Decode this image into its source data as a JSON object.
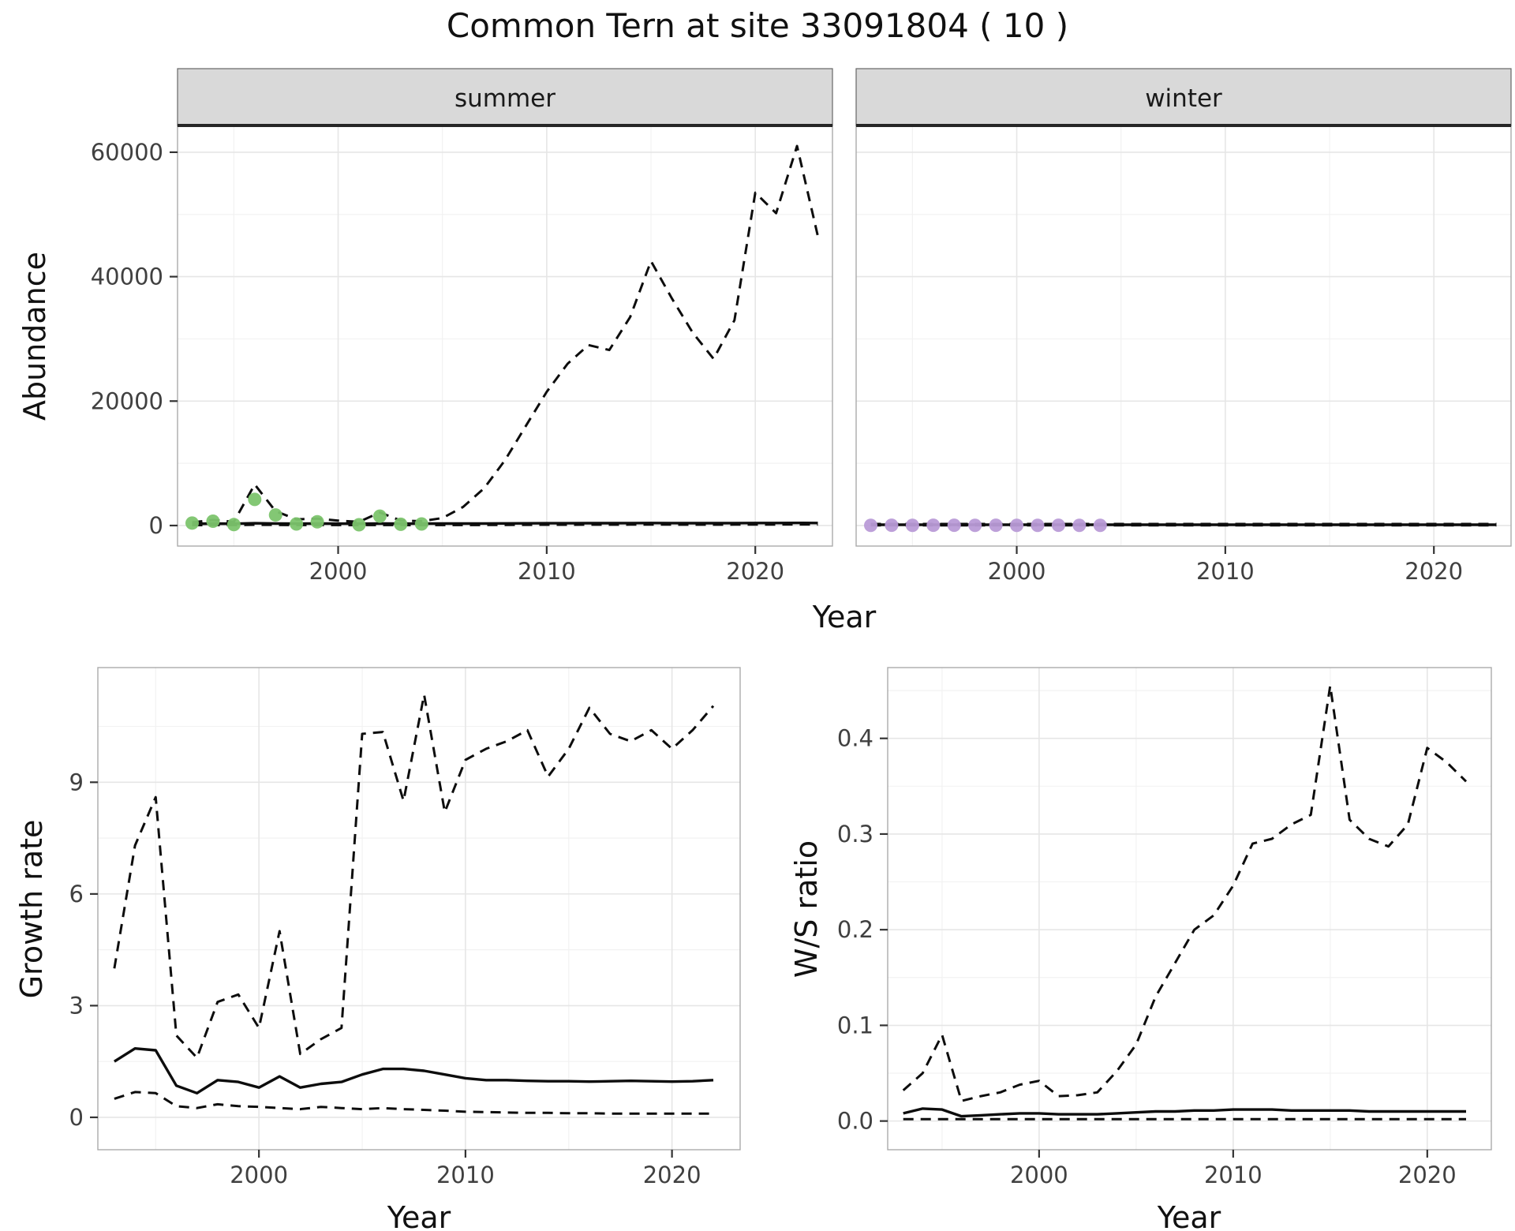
{
  "title": "Common Tern at site 33091804 ( 10 )",
  "axis_labels": {
    "abundance": "Abundance",
    "year": "Year",
    "growth_rate": "Growth rate",
    "ws_ratio": "W/S ratio"
  },
  "colors": {
    "summer_points": "#7cc46d",
    "winter_points": "#b99bd7",
    "line": "#0d0d0d",
    "strip_bg": "#d9d9d9",
    "strip_border": "#666666",
    "strip_underline": "#262626",
    "panel_border": "#ababab",
    "grid_major": "#e6e6e6",
    "grid_minor": "#f2f2f2",
    "tick": "#333333",
    "tick_label": "#404040",
    "text": "#1a1a1a"
  },
  "chart_data": [
    {
      "id": "abundance_summer",
      "type": "line",
      "facet_label": "summer",
      "xlabel": "Year",
      "ylabel": "Abundance",
      "xlim": [
        1992.3,
        2023.7
      ],
      "ylim": [
        -3300,
        64300
      ],
      "x_ticks": [
        2000,
        2010,
        2020
      ],
      "x_tick_labels": [
        "2000",
        "2010",
        "2020"
      ],
      "y_ticks": [
        0,
        20000,
        40000,
        60000
      ],
      "y_tick_labels": [
        "0",
        "20000",
        "40000",
        "60000"
      ],
      "series": [
        {
          "name": "upper_ci",
          "style": "dashed",
          "x": [
            1993,
            1994,
            1995,
            1996,
            1997,
            1998,
            1999,
            2000,
            2001,
            2002,
            2003,
            2004,
            2005,
            2006,
            2007,
            2008,
            2009,
            2010,
            2011,
            2012,
            2013,
            2014,
            2015,
            2016,
            2017,
            2018,
            2019,
            2020,
            2021,
            2022,
            2023
          ],
          "y": [
            500,
            900,
            600,
            6600,
            2300,
            1000,
            1100,
            800,
            600,
            2100,
            800,
            700,
            1200,
            3000,
            6000,
            10500,
            16000,
            21500,
            26000,
            29000,
            28200,
            33500,
            42500,
            36500,
            31000,
            26800,
            33000,
            53500,
            50200,
            61000,
            46500
          ]
        },
        {
          "name": "estimate",
          "style": "solid",
          "x": [
            1993,
            1994,
            1995,
            1996,
            1997,
            1998,
            1999,
            2000,
            2001,
            2002,
            2003,
            2004,
            2005,
            2006,
            2007,
            2008,
            2009,
            2010,
            2011,
            2012,
            2013,
            2014,
            2015,
            2016,
            2017,
            2018,
            2019,
            2020,
            2021,
            2022,
            2023
          ],
          "y": [
            260,
            310,
            290,
            360,
            330,
            300,
            310,
            300,
            290,
            320,
            300,
            300,
            310,
            320,
            330,
            340,
            350,
            360,
            370,
            380,
            380,
            390,
            400,
            390,
            380,
            380,
            390,
            400,
            400,
            410,
            400
          ]
        },
        {
          "name": "lower_ci",
          "style": "dashed",
          "x": [
            1993,
            1994,
            1995,
            1996,
            1997,
            1998,
            1999,
            2000,
            2001,
            2002,
            2003,
            2004,
            2005,
            2006,
            2007,
            2008,
            2009,
            2010,
            2011,
            2012,
            2013,
            2014,
            2015,
            2016,
            2017,
            2018,
            2019,
            2020,
            2021,
            2022,
            2023
          ],
          "y": [
            60,
            80,
            70,
            130,
            100,
            80,
            80,
            70,
            60,
            90,
            70,
            60,
            70,
            80,
            90,
            100,
            110,
            120,
            130,
            140,
            140,
            150,
            160,
            150,
            140,
            140,
            150,
            160,
            160,
            170,
            160
          ]
        }
      ],
      "points": {
        "name": "summer_observations",
        "color_key": "summer_points",
        "x": [
          1993,
          1994,
          1995,
          1996,
          1997,
          1998,
          1999,
          2001,
          2002,
          2003,
          2004
        ],
        "y": [
          400,
          700,
          150,
          4200,
          1700,
          250,
          600,
          120,
          1500,
          200,
          250
        ]
      }
    },
    {
      "id": "abundance_winter",
      "type": "line",
      "facet_label": "winter",
      "xlabel": "Year",
      "ylabel": "Abundance",
      "xlim": [
        1992.3,
        2023.7
      ],
      "ylim": [
        -3300,
        64300
      ],
      "x_ticks": [
        2000,
        2010,
        2020
      ],
      "x_tick_labels": [
        "2000",
        "2010",
        "2020"
      ],
      "y_ticks": [
        0,
        20000,
        40000,
        60000
      ],
      "y_tick_labels": [
        "0",
        "20000",
        "40000",
        "60000"
      ],
      "series": [
        {
          "name": "upper_ci",
          "style": "dashed",
          "x_range": [
            1993,
            2023
          ],
          "y_const": 250
        },
        {
          "name": "estimate",
          "style": "solid",
          "x_range": [
            1993,
            2023
          ],
          "y_const": 120
        },
        {
          "name": "lower_ci",
          "style": "dashed",
          "x_range": [
            1993,
            2023
          ],
          "y_const": 30
        }
      ],
      "points": {
        "name": "winter_observations",
        "color_key": "winter_points",
        "x": [
          1993,
          1994,
          1995,
          1996,
          1997,
          1998,
          1999,
          2000,
          2001,
          2002,
          2003,
          2004
        ],
        "y": [
          30,
          40,
          30,
          50,
          40,
          30,
          40,
          30,
          30,
          40,
          30,
          30
        ]
      }
    },
    {
      "id": "growth_rate",
      "type": "line",
      "xlabel": "Year",
      "ylabel": "Growth rate",
      "xlim": [
        1992.2,
        2023.3
      ],
      "ylim": [
        -0.87,
        12.08
      ],
      "x_ticks": [
        2000,
        2010,
        2020
      ],
      "x_tick_labels": [
        "2000",
        "2010",
        "2020"
      ],
      "y_ticks": [
        0,
        3,
        6,
        9
      ],
      "y_tick_labels": [
        "0",
        "3",
        "6",
        "9"
      ],
      "series": [
        {
          "name": "upper_ci",
          "style": "dashed",
          "x": [
            1993,
            1994,
            1995,
            1996,
            1997,
            1998,
            1999,
            2000,
            2001,
            2002,
            2003,
            2004,
            2005,
            2006,
            2007,
            2008,
            2009,
            2010,
            2011,
            2012,
            2013,
            2014,
            2015,
            2016,
            2017,
            2018,
            2019,
            2020,
            2021,
            2022
          ],
          "y": [
            4.0,
            7.3,
            8.6,
            2.2,
            1.6,
            3.1,
            3.3,
            2.4,
            5.0,
            1.7,
            2.1,
            2.4,
            10.3,
            10.35,
            8.5,
            11.35,
            8.2,
            9.6,
            9.9,
            10.1,
            10.4,
            9.15,
            9.9,
            11.0,
            10.3,
            10.1,
            10.4,
            9.9,
            10.4,
            11.05
          ]
        },
        {
          "name": "estimate",
          "style": "solid",
          "x": [
            1993,
            1994,
            1995,
            1996,
            1997,
            1998,
            1999,
            2000,
            2001,
            2002,
            2003,
            2004,
            2005,
            2006,
            2007,
            2008,
            2009,
            2010,
            2011,
            2012,
            2013,
            2014,
            2015,
            2016,
            2017,
            2018,
            2019,
            2020,
            2021,
            2022
          ],
          "y": [
            1.5,
            1.85,
            1.8,
            0.85,
            0.65,
            1.0,
            0.95,
            0.8,
            1.1,
            0.8,
            0.9,
            0.95,
            1.15,
            1.3,
            1.3,
            1.25,
            1.15,
            1.05,
            1.0,
            1.0,
            0.98,
            0.97,
            0.97,
            0.96,
            0.97,
            0.98,
            0.97,
            0.96,
            0.97,
            1.0
          ]
        },
        {
          "name": "lower_ci",
          "style": "dashed",
          "x": [
            1993,
            1994,
            1995,
            1996,
            1997,
            1998,
            1999,
            2000,
            2001,
            2002,
            2003,
            2004,
            2005,
            2006,
            2007,
            2008,
            2009,
            2010,
            2011,
            2012,
            2013,
            2014,
            2015,
            2016,
            2017,
            2018,
            2019,
            2020,
            2021,
            2022
          ],
          "y": [
            0.5,
            0.68,
            0.65,
            0.3,
            0.25,
            0.35,
            0.3,
            0.28,
            0.25,
            0.22,
            0.28,
            0.25,
            0.22,
            0.25,
            0.22,
            0.2,
            0.18,
            0.15,
            0.14,
            0.13,
            0.12,
            0.12,
            0.11,
            0.11,
            0.1,
            0.1,
            0.1,
            0.1,
            0.1,
            0.1
          ]
        }
      ]
    },
    {
      "id": "ws_ratio",
      "type": "line",
      "xlabel": "Year",
      "ylabel": "W/S ratio",
      "xlim": [
        1992.2,
        2023.3
      ],
      "ylim": [
        -0.03,
        0.474
      ],
      "x_ticks": [
        2000,
        2010,
        2020
      ],
      "x_tick_labels": [
        "2000",
        "2010",
        "2020"
      ],
      "y_ticks": [
        0.0,
        0.1,
        0.2,
        0.3,
        0.4
      ],
      "y_tick_labels": [
        "0.0",
        "0.1",
        "0.2",
        "0.3",
        "0.4"
      ],
      "series": [
        {
          "name": "upper_ci",
          "style": "dashed",
          "x": [
            1993,
            1994,
            1995,
            1996,
            1997,
            1998,
            1999,
            2000,
            2001,
            2002,
            2003,
            2004,
            2005,
            2006,
            2007,
            2008,
            2009,
            2010,
            2011,
            2012,
            2013,
            2014,
            2015,
            2016,
            2017,
            2018,
            2019,
            2020,
            2021,
            2022
          ],
          "y": [
            0.032,
            0.05,
            0.09,
            0.021,
            0.026,
            0.03,
            0.038,
            0.042,
            0.026,
            0.027,
            0.03,
            0.052,
            0.08,
            0.13,
            0.165,
            0.2,
            0.215,
            0.246,
            0.29,
            0.295,
            0.31,
            0.32,
            0.455,
            0.315,
            0.295,
            0.287,
            0.31,
            0.39,
            0.375,
            0.355
          ]
        },
        {
          "name": "estimate",
          "style": "solid",
          "x": [
            1993,
            1994,
            1995,
            1996,
            1997,
            1998,
            1999,
            2000,
            2001,
            2002,
            2003,
            2004,
            2005,
            2006,
            2007,
            2008,
            2009,
            2010,
            2011,
            2012,
            2013,
            2014,
            2015,
            2016,
            2017,
            2018,
            2019,
            2020,
            2021,
            2022
          ],
          "y": [
            0.008,
            0.013,
            0.012,
            0.005,
            0.006,
            0.007,
            0.008,
            0.008,
            0.007,
            0.007,
            0.007,
            0.008,
            0.009,
            0.01,
            0.01,
            0.011,
            0.011,
            0.012,
            0.012,
            0.012,
            0.011,
            0.011,
            0.011,
            0.011,
            0.01,
            0.01,
            0.01,
            0.01,
            0.01,
            0.01
          ]
        },
        {
          "name": "lower_ci",
          "style": "dashed",
          "x_range": [
            1993,
            2022
          ],
          "y_const": 0.002
        }
      ]
    }
  ]
}
